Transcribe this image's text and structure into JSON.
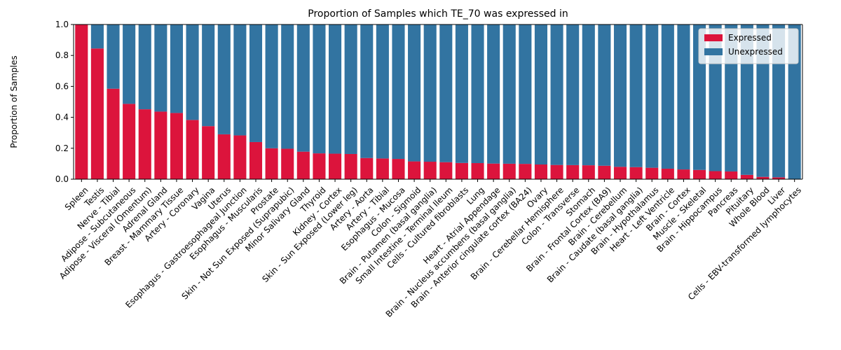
{
  "colors": {
    "expressed": "#dc143c",
    "unexpressed": "#3274a1"
  },
  "chart_data": {
    "type": "bar",
    "stacked": true,
    "title": "Proportion of Samples which TE_70 was expressed in",
    "xlabel": "",
    "ylabel": "Proportion of Samples",
    "ylim": [
      0,
      1.0
    ],
    "yticks": [
      "0.0",
      "0.2",
      "0.4",
      "0.6",
      "0.8",
      "1.0"
    ],
    "grid": false,
    "legend": "upper-right",
    "categories": [
      "Spleen",
      "Testis",
      "Nerve - Tibial",
      "Adipose - Subcutaneous",
      "Adipose - Visceral (Omentum)",
      "Adrenal Gland",
      "Breast - Mammary Tissue",
      "Artery - Coronary",
      "Vagina",
      "Uterus",
      "Esophagus - Gastroesophageal Junction",
      "Esophagus - Muscularis",
      "Prostate",
      "Skin - Not Sun Exposed (Suprapubic)",
      "Minor Salivary Gland",
      "Thyroid",
      "Kidney - Cortex",
      "Skin - Sun Exposed (Lower leg)",
      "Artery - Aorta",
      "Artery - Tibial",
      "Esophagus - Mucosa",
      "Colon - Sigmoid",
      "Brain - Putamen (basal ganglia)",
      "Small Intestine - Terminal Ileum",
      "Cells - Cultured fibroblasts",
      "Lung",
      "Heart - Atrial Appendage",
      "Brain - Nucleus accumbens (basal ganglia)",
      "Brain - Anterior cingulate cortex (BA24)",
      "Ovary",
      "Brain - Cerebellar Hemisphere",
      "Colon - Transverse",
      "Stomach",
      "Brain - Frontal Cortex (BA9)",
      "Brain - Cerebellum",
      "Brain - Caudate (basal ganglia)",
      "Brain - Hypothalamus",
      "Heart - Left Ventricle",
      "Brain - Cortex",
      "Muscle - Skeletal",
      "Brain - Hippocampus",
      "Pancreas",
      "Pituitary",
      "Whole Blood",
      "Liver",
      "Cells - EBV-transformed lymphocytes"
    ],
    "series": [
      {
        "name": "Expressed",
        "values": [
          1.0,
          0.845,
          0.585,
          0.487,
          0.452,
          0.437,
          0.428,
          0.383,
          0.343,
          0.29,
          0.283,
          0.24,
          0.2,
          0.197,
          0.178,
          0.167,
          0.165,
          0.163,
          0.137,
          0.134,
          0.131,
          0.115,
          0.113,
          0.11,
          0.105,
          0.104,
          0.101,
          0.1,
          0.099,
          0.095,
          0.092,
          0.091,
          0.09,
          0.087,
          0.08,
          0.078,
          0.074,
          0.068,
          0.063,
          0.06,
          0.052,
          0.05,
          0.028,
          0.015,
          0.012,
          0.0
        ]
      },
      {
        "name": "Unexpressed",
        "values": [
          0.0,
          0.155,
          0.415,
          0.513,
          0.548,
          0.563,
          0.572,
          0.617,
          0.657,
          0.71,
          0.717,
          0.76,
          0.8,
          0.803,
          0.822,
          0.833,
          0.835,
          0.837,
          0.863,
          0.866,
          0.869,
          0.885,
          0.887,
          0.89,
          0.895,
          0.896,
          0.899,
          0.9,
          0.901,
          0.905,
          0.908,
          0.909,
          0.91,
          0.913,
          0.92,
          0.922,
          0.926,
          0.932,
          0.937,
          0.94,
          0.948,
          0.95,
          0.972,
          0.985,
          0.988,
          1.0
        ]
      }
    ]
  }
}
